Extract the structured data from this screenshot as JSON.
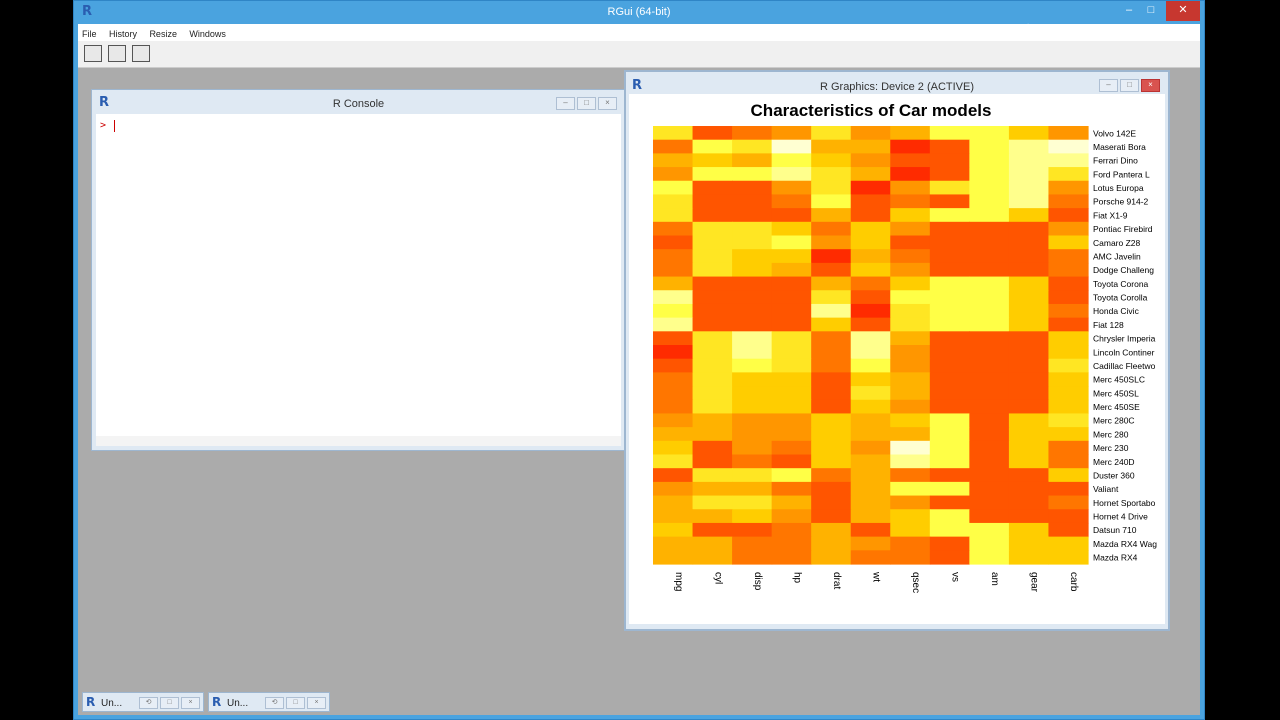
{
  "app": {
    "title": "RGui (64-bit)",
    "menu": [
      "File",
      "History",
      "Resize",
      "Windows"
    ],
    "logo": "R"
  },
  "console": {
    "title": "R Console",
    "prompt": ">"
  },
  "graphics": {
    "title": "R Graphics: Device 2 (ACTIVE)"
  },
  "minimized": [
    {
      "label": "Un..."
    },
    {
      "label": "Un..."
    }
  ],
  "chart_data": {
    "type": "heatmap",
    "title": "Characteristics of Car models",
    "columns": [
      "mpg",
      "cyl",
      "disp",
      "hp",
      "drat",
      "wt",
      "qsec",
      "vs",
      "am",
      "gear",
      "carb"
    ],
    "rows": [
      "Volvo 142E",
      "Maserati Bora",
      "Ferrari Dino",
      "Ford Pantera L",
      "Lotus Europa",
      "Porsche 914-2",
      "Fiat X1-9",
      "Pontiac Firebird",
      "Camaro Z28",
      "AMC Javelin",
      "Dodge Challeng",
      "Toyota Corona",
      "Toyota Corolla",
      "Honda Civic",
      "Fiat 128",
      "Chrysler Imperia",
      "Lincoln Continer",
      "Cadillac Fleetwo",
      "Merc 450SLC",
      "Merc 450SL",
      "Merc 450SE",
      "Merc 280C",
      "Merc 280",
      "Merc 230",
      "Merc 240D",
      "Duster 360",
      "Valiant",
      "Hornet Sportabo",
      "Hornet 4 Drive",
      "Datsun 710",
      "Mazda RX4 Wag",
      "Mazda RX4"
    ],
    "values": [
      [
        0.7,
        0.2,
        0.3,
        0.4,
        0.7,
        0.4,
        0.5,
        0.8,
        0.8,
        0.6,
        0.4
      ],
      [
        0.3,
        0.8,
        0.7,
        1.0,
        0.5,
        0.5,
        0.1,
        0.2,
        0.8,
        0.9,
        1.0
      ],
      [
        0.5,
        0.6,
        0.5,
        0.8,
        0.6,
        0.4,
        0.2,
        0.2,
        0.8,
        0.9,
        0.9
      ],
      [
        0.4,
        0.8,
        0.8,
        0.9,
        0.7,
        0.5,
        0.1,
        0.2,
        0.8,
        0.9,
        0.7
      ],
      [
        0.8,
        0.2,
        0.2,
        0.4,
        0.7,
        0.1,
        0.4,
        0.7,
        0.8,
        0.9,
        0.4
      ],
      [
        0.7,
        0.2,
        0.2,
        0.3,
        0.8,
        0.2,
        0.3,
        0.2,
        0.8,
        0.9,
        0.3
      ],
      [
        0.7,
        0.2,
        0.2,
        0.2,
        0.5,
        0.2,
        0.6,
        0.8,
        0.8,
        0.6,
        0.2
      ],
      [
        0.3,
        0.7,
        0.7,
        0.6,
        0.3,
        0.6,
        0.4,
        0.2,
        0.2,
        0.2,
        0.4
      ],
      [
        0.2,
        0.7,
        0.7,
        0.8,
        0.4,
        0.6,
        0.2,
        0.2,
        0.2,
        0.2,
        0.6
      ],
      [
        0.3,
        0.7,
        0.6,
        0.6,
        0.1,
        0.5,
        0.3,
        0.2,
        0.2,
        0.2,
        0.3
      ],
      [
        0.3,
        0.7,
        0.6,
        0.5,
        0.2,
        0.6,
        0.4,
        0.2,
        0.2,
        0.2,
        0.3
      ],
      [
        0.5,
        0.2,
        0.2,
        0.2,
        0.5,
        0.3,
        0.6,
        0.8,
        0.8,
        0.6,
        0.2
      ],
      [
        0.9,
        0.2,
        0.2,
        0.2,
        0.7,
        0.2,
        0.8,
        0.8,
        0.8,
        0.6,
        0.2
      ],
      [
        0.8,
        0.2,
        0.2,
        0.2,
        0.9,
        0.1,
        0.7,
        0.8,
        0.8,
        0.6,
        0.3
      ],
      [
        0.9,
        0.2,
        0.2,
        0.2,
        0.6,
        0.2,
        0.7,
        0.8,
        0.8,
        0.6,
        0.2
      ],
      [
        0.2,
        0.7,
        0.9,
        0.7,
        0.3,
        0.9,
        0.5,
        0.2,
        0.2,
        0.2,
        0.6
      ],
      [
        0.1,
        0.7,
        0.9,
        0.7,
        0.3,
        0.9,
        0.4,
        0.2,
        0.2,
        0.2,
        0.6
      ],
      [
        0.2,
        0.7,
        0.8,
        0.7,
        0.3,
        0.8,
        0.4,
        0.2,
        0.2,
        0.2,
        0.7
      ],
      [
        0.3,
        0.7,
        0.6,
        0.6,
        0.2,
        0.6,
        0.5,
        0.2,
        0.2,
        0.2,
        0.6
      ],
      [
        0.3,
        0.7,
        0.6,
        0.6,
        0.2,
        0.7,
        0.5,
        0.2,
        0.2,
        0.2,
        0.6
      ],
      [
        0.3,
        0.7,
        0.6,
        0.6,
        0.2,
        0.6,
        0.4,
        0.2,
        0.2,
        0.2,
        0.6
      ],
      [
        0.4,
        0.5,
        0.4,
        0.4,
        0.6,
        0.5,
        0.6,
        0.8,
        0.2,
        0.6,
        0.7
      ],
      [
        0.5,
        0.5,
        0.4,
        0.4,
        0.6,
        0.5,
        0.5,
        0.8,
        0.2,
        0.6,
        0.6
      ],
      [
        0.6,
        0.2,
        0.4,
        0.3,
        0.6,
        0.4,
        1.0,
        0.8,
        0.2,
        0.6,
        0.3
      ],
      [
        0.7,
        0.2,
        0.3,
        0.2,
        0.6,
        0.5,
        0.9,
        0.8,
        0.2,
        0.6,
        0.3
      ],
      [
        0.2,
        0.7,
        0.7,
        0.8,
        0.3,
        0.5,
        0.3,
        0.2,
        0.2,
        0.2,
        0.6
      ],
      [
        0.4,
        0.5,
        0.5,
        0.3,
        0.2,
        0.5,
        0.8,
        0.8,
        0.2,
        0.2,
        0.2
      ],
      [
        0.5,
        0.7,
        0.7,
        0.5,
        0.2,
        0.5,
        0.4,
        0.2,
        0.2,
        0.2,
        0.3
      ],
      [
        0.5,
        0.5,
        0.6,
        0.4,
        0.2,
        0.5,
        0.6,
        0.8,
        0.2,
        0.2,
        0.2
      ],
      [
        0.6,
        0.2,
        0.2,
        0.3,
        0.5,
        0.2,
        0.6,
        0.8,
        0.8,
        0.6,
        0.2
      ],
      [
        0.5,
        0.5,
        0.3,
        0.3,
        0.5,
        0.4,
        0.3,
        0.2,
        0.8,
        0.6,
        0.6
      ],
      [
        0.5,
        0.5,
        0.3,
        0.3,
        0.5,
        0.3,
        0.3,
        0.2,
        0.8,
        0.6,
        0.6
      ]
    ]
  }
}
